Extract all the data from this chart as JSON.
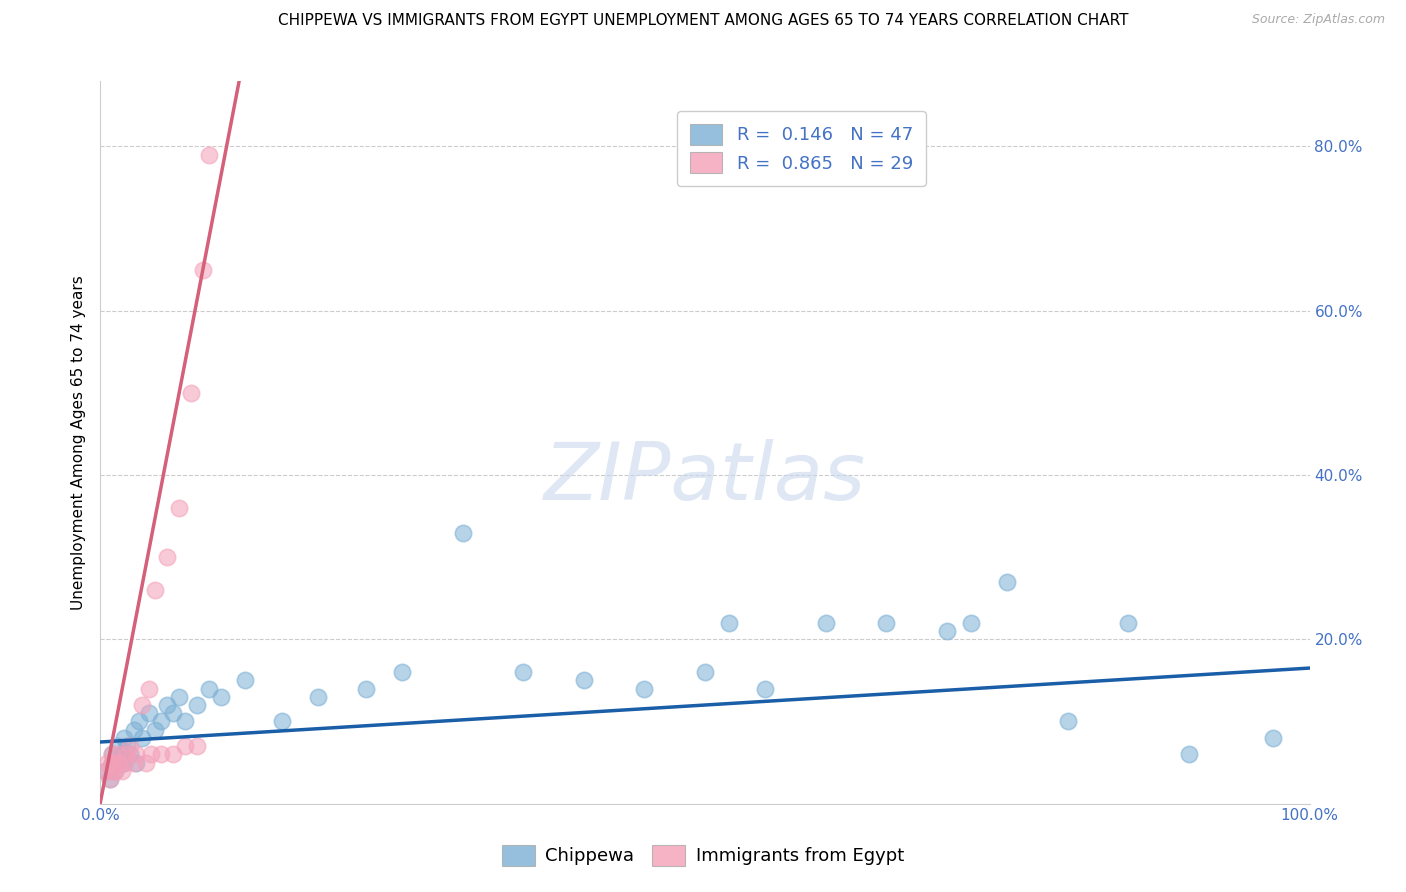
{
  "title": "CHIPPEWA VS IMMIGRANTS FROM EGYPT UNEMPLOYMENT AMONG AGES 65 TO 74 YEARS CORRELATION CHART",
  "source": "Source: ZipAtlas.com",
  "ylabel": "Unemployment Among Ages 65 to 74 years",
  "xlim": [
    0.0,
    1.0
  ],
  "ylim": [
    0.0,
    0.88
  ],
  "ytick_vals": [
    0.2,
    0.4,
    0.6,
    0.8
  ],
  "ytick_labels": [
    "20.0%",
    "40.0%",
    "60.0%",
    "80.0%"
  ],
  "xtick_vals": [
    0.0,
    0.2,
    0.4,
    0.6,
    0.8,
    1.0
  ],
  "xtick_labels": [
    "0.0%",
    "",
    "",
    "",
    "",
    "100.0%"
  ],
  "legend_R1": "R = ",
  "legend_V1": "0.146",
  "legend_N1": "  N = ",
  "legend_NV1": "47",
  "legend_R2": "R = ",
  "legend_V2": "0.865",
  "legend_N2": "  N = ",
  "legend_NV2": "29",
  "blue_scatter_x": [
    0.005,
    0.008,
    0.01,
    0.01,
    0.012,
    0.015,
    0.015,
    0.018,
    0.02,
    0.02,
    0.022,
    0.025,
    0.028,
    0.03,
    0.032,
    0.035,
    0.04,
    0.045,
    0.05,
    0.055,
    0.06,
    0.065,
    0.07,
    0.08,
    0.09,
    0.1,
    0.12,
    0.15,
    0.18,
    0.22,
    0.25,
    0.3,
    0.35,
    0.4,
    0.45,
    0.5,
    0.52,
    0.55,
    0.6,
    0.65,
    0.7,
    0.72,
    0.75,
    0.8,
    0.85,
    0.9,
    0.97
  ],
  "blue_scatter_y": [
    0.04,
    0.03,
    0.05,
    0.06,
    0.04,
    0.05,
    0.07,
    0.06,
    0.05,
    0.08,
    0.07,
    0.06,
    0.09,
    0.05,
    0.1,
    0.08,
    0.11,
    0.09,
    0.1,
    0.12,
    0.11,
    0.13,
    0.1,
    0.12,
    0.14,
    0.13,
    0.15,
    0.1,
    0.13,
    0.14,
    0.16,
    0.33,
    0.16,
    0.15,
    0.14,
    0.16,
    0.22,
    0.14,
    0.22,
    0.22,
    0.21,
    0.22,
    0.27,
    0.1,
    0.22,
    0.06,
    0.08
  ],
  "pink_scatter_x": [
    0.004,
    0.006,
    0.008,
    0.01,
    0.01,
    0.01,
    0.012,
    0.015,
    0.015,
    0.018,
    0.02,
    0.022,
    0.025,
    0.028,
    0.03,
    0.035,
    0.038,
    0.04,
    0.042,
    0.045,
    0.05,
    0.055,
    0.06,
    0.065,
    0.07,
    0.075,
    0.08,
    0.085,
    0.09
  ],
  "pink_scatter_y": [
    0.04,
    0.05,
    0.03,
    0.04,
    0.05,
    0.06,
    0.04,
    0.05,
    0.06,
    0.04,
    0.05,
    0.06,
    0.07,
    0.05,
    0.06,
    0.12,
    0.05,
    0.14,
    0.06,
    0.26,
    0.06,
    0.3,
    0.06,
    0.36,
    0.07,
    0.5,
    0.07,
    0.65,
    0.79
  ],
  "blue_line_x": [
    0.0,
    1.0
  ],
  "blue_line_y": [
    0.075,
    0.165
  ],
  "pink_line_x": [
    0.0,
    0.115
  ],
  "pink_line_y": [
    0.0,
    0.88
  ],
  "background_color": "#ffffff",
  "scatter_color_blue": "#7bafd4",
  "scatter_color_pink": "#f4a0b8",
  "line_color_blue": "#1a5ea8",
  "line_color_pink": "#d4607a",
  "watermark_text": "ZIPatlas",
  "title_fontsize": 11,
  "axis_label_fontsize": 11,
  "tick_fontsize": 11,
  "legend_fontsize": 13
}
